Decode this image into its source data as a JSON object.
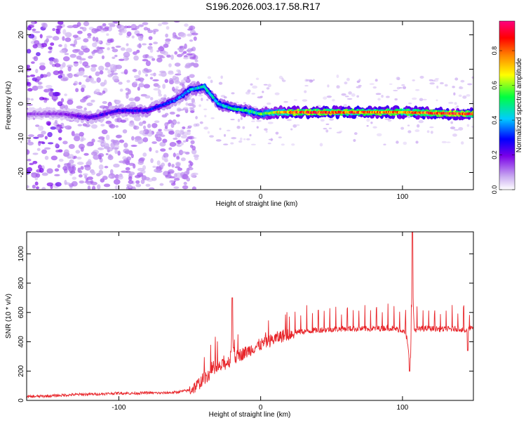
{
  "title": "S196.2026.003.17.58.R17",
  "chart_data": [
    {
      "type": "heatmap",
      "title": "S196.2026.003.17.58.R17",
      "xlabel": "Height of straight line (km)",
      "ylabel": "Frequency (Hz)",
      "xlim": [
        -165,
        150
      ],
      "ylim": [
        -25,
        24
      ],
      "xticks": [
        -100,
        0,
        100
      ],
      "xtick_labels": [
        "-100",
        "0",
        "100"
      ],
      "yticks": [
        -20,
        -10,
        0,
        10,
        20
      ],
      "ytick_labels": [
        "-20",
        "-10",
        "0",
        "10",
        "20"
      ],
      "colorbar": {
        "label": "Normalized spectral amplitude",
        "range": [
          0,
          0.97
        ],
        "ticks": [
          0,
          0.2,
          0.4,
          0.6,
          0.8
        ],
        "tick_labels": [
          "0.0",
          "0.2",
          "0.4",
          "0.6",
          "0.8"
        ]
      },
      "ridge": {
        "x": [
          -160,
          -140,
          -120,
          -100,
          -80,
          -60,
          -50,
          -40,
          -30,
          -20,
          -10,
          0,
          10,
          25,
          60,
          100,
          148
        ],
        "frequency": [
          -3,
          -3,
          -4,
          -2,
          -2,
          1,
          4,
          5,
          0,
          -1.5,
          -2,
          -3,
          -2.5,
          -2.5,
          -2.5,
          -2.5,
          -3
        ],
        "amplitude": [
          0.15,
          0.18,
          0.25,
          0.28,
          0.3,
          0.35,
          0.45,
          0.5,
          0.45,
          0.5,
          0.55,
          0.6,
          0.7,
          0.95,
          0.9,
          0.85,
          0.95
        ]
      }
    },
    {
      "type": "line",
      "xlabel": "Height of straight line (km)",
      "ylabel": "SNR (10 * v/v)",
      "xlim": [
        -165,
        150
      ],
      "ylim": [
        0,
        1150
      ],
      "xticks": [
        -100,
        0,
        100
      ],
      "xtick_labels": [
        "-100",
        "0",
        "100"
      ],
      "yticks": [
        0,
        200,
        400,
        600,
        800,
        1000
      ],
      "ytick_labels": [
        "0",
        "200",
        "400",
        "600",
        "800",
        "1000"
      ],
      "line_color": "#e8262b",
      "series": [
        {
          "name": "SNR",
          "x": [
            -165,
            -150,
            -130,
            -110,
            -100,
            -90,
            -80,
            -70,
            -60,
            -50,
            -45,
            -40,
            -35,
            -30,
            -25,
            -20,
            -15,
            -10,
            -5,
            0,
            5,
            10,
            15,
            20,
            25,
            30,
            40,
            50,
            60,
            70,
            80,
            90,
            100,
            103,
            105,
            107,
            108,
            110,
            115,
            120,
            130,
            140,
            145,
            148
          ],
          "y": [
            25,
            30,
            40,
            45,
            50,
            48,
            52,
            50,
            55,
            70,
            100,
            150,
            190,
            220,
            250,
            280,
            310,
            330,
            360,
            380,
            400,
            420,
            440,
            450,
            465,
            470,
            480,
            485,
            490,
            488,
            490,
            495,
            480,
            430,
            260,
            400,
            480,
            485,
            490,
            490,
            485,
            490,
            470,
            500
          ]
        }
      ],
      "spikes": [
        {
          "x": -20,
          "y": 700
        },
        {
          "x": 107,
          "y": 1150
        },
        {
          "x": 105,
          "y": 200
        },
        {
          "x": 146,
          "y": 340
        }
      ]
    }
  ]
}
